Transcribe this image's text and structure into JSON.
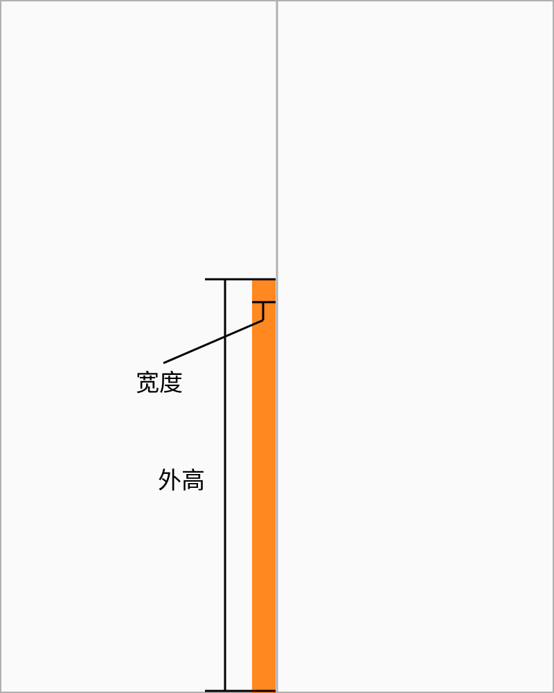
{
  "labels": {
    "width": "宽度",
    "outer_height": "外高"
  },
  "colors": {
    "background": "#fafafa",
    "frame": "#b0b0b0",
    "accent_strip": "#ff8820",
    "dimension_line": "#000000"
  }
}
